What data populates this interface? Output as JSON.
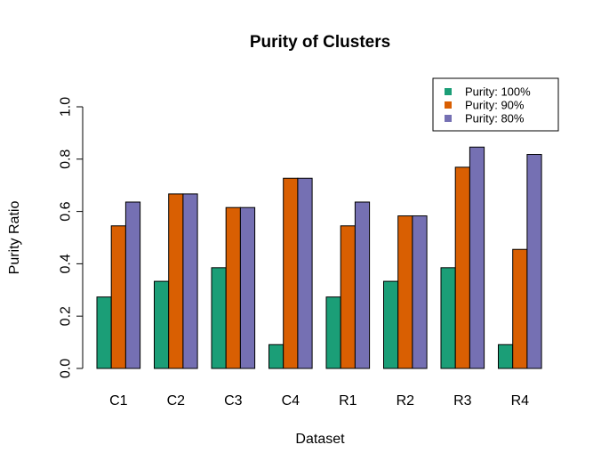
{
  "chart_data": {
    "type": "bar",
    "title": "Purity of Clusters",
    "xlabel": "Dataset",
    "ylabel": "Purity Ratio",
    "ylim": [
      0,
      1
    ],
    "yticks": [
      0.0,
      0.2,
      0.4,
      0.6,
      0.8,
      1.0
    ],
    "ytick_labels": [
      "0.0",
      "0.2",
      "0.4",
      "0.6",
      "0.8",
      "1.0"
    ],
    "legend_position": "top-right",
    "categories": [
      "C1",
      "C2",
      "C3",
      "C4",
      "R1",
      "R2",
      "R3",
      "R4"
    ],
    "series": [
      {
        "name": "Purity: 100%",
        "color": "#1b9e77",
        "values": [
          0.273,
          0.333,
          0.385,
          0.091,
          0.273,
          0.333,
          0.385,
          0.091
        ]
      },
      {
        "name": "Purity: 90%",
        "color": "#d95f02",
        "values": [
          0.545,
          0.667,
          0.615,
          0.727,
          0.545,
          0.583,
          0.769,
          0.455
        ]
      },
      {
        "name": "Purity: 80%",
        "color": "#7570b3",
        "values": [
          0.636,
          0.667,
          0.615,
          0.727,
          0.636,
          0.583,
          0.846,
          0.818
        ]
      }
    ]
  }
}
